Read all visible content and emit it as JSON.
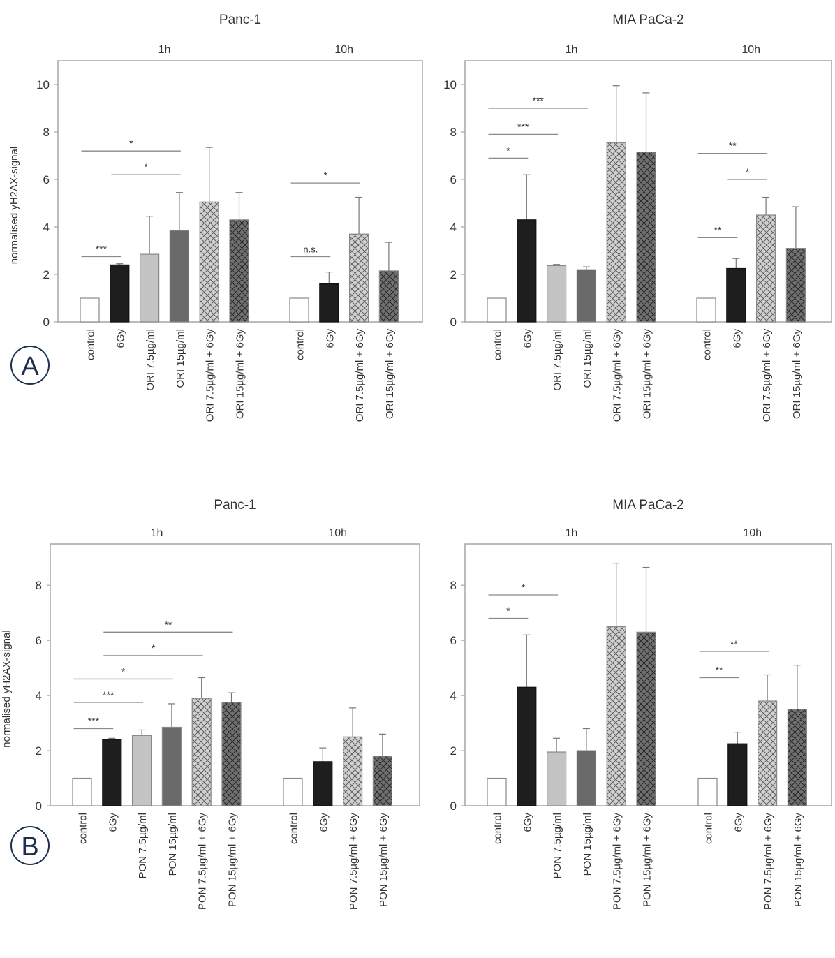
{
  "panel_labels": [
    "A",
    "B"
  ],
  "colors": {
    "control": "#ffffff",
    "irradiated": "#1e1e1e",
    "drug_low": "#c4c4c4",
    "drug_high": "#6a6a6a",
    "combo_low": "#c8c8c8",
    "combo_high": "#6a6a6a",
    "axis": "#a6a6a6",
    "text": "#333333"
  },
  "chart_data": [
    {
      "id": "A-panc1",
      "type": "bar",
      "title": "Panc-1",
      "ylabel": "normalised yH2AX-signal",
      "xlabel": "",
      "ylim": [
        0,
        11
      ],
      "yticks": [
        0,
        2,
        4,
        6,
        8,
        10
      ],
      "groups": [
        {
          "label": "1h",
          "categories": [
            "control",
            "6Gy",
            "ORI 7.5µg/ml",
            "ORI 15µg/ml",
            "ORI 7.5µg/ml + 6Gy",
            "ORI 15µg/ml + 6Gy"
          ],
          "values": [
            1.0,
            2.4,
            2.85,
            3.85,
            5.05,
            4.3
          ],
          "errors": [
            0,
            0.05,
            1.6,
            1.6,
            2.3,
            1.15
          ],
          "styles": [
            "control",
            "irradiated",
            "drug_low",
            "drug_high",
            "combo_low",
            "combo_high"
          ]
        },
        {
          "label": "10h",
          "categories": [
            "control",
            "6Gy",
            "ORI 7.5µg/ml + 6Gy",
            "ORI 15µg/ml + 6Gy"
          ],
          "values": [
            1.0,
            1.6,
            3.7,
            2.15
          ],
          "errors": [
            0,
            0.5,
            1.55,
            1.2
          ],
          "styles": [
            "control",
            "irradiated",
            "combo_low",
            "combo_high"
          ]
        }
      ],
      "significance": [
        {
          "group": 0,
          "from": 0,
          "to": 1,
          "y": 2.75,
          "label": "***"
        },
        {
          "group": 0,
          "from": 0,
          "to": 3,
          "y": 7.2,
          "label": "*"
        },
        {
          "group": 0,
          "from": 1,
          "to": 3,
          "y": 6.2,
          "label": "*"
        },
        {
          "group": 1,
          "from": 0,
          "to": 1,
          "y": 2.75,
          "label": "n.s."
        },
        {
          "group": 1,
          "from": 0,
          "to": 2,
          "y": 5.85,
          "label": "*"
        }
      ]
    },
    {
      "id": "A-miapaca2",
      "type": "bar",
      "title": "MIA PaCa-2",
      "ylabel": "",
      "xlabel": "",
      "ylim": [
        0,
        11
      ],
      "yticks": [
        0,
        2,
        4,
        6,
        8,
        10
      ],
      "groups": [
        {
          "label": "1h",
          "categories": [
            "control",
            "6Gy",
            "ORI 7.5µg/ml",
            "ORI 15µg/ml",
            "ORI 7.5µg/ml + 6Gy",
            "ORI 15µg/ml + 6Gy"
          ],
          "values": [
            1.0,
            4.3,
            2.37,
            2.2,
            7.55,
            7.15
          ],
          "errors": [
            0,
            1.9,
            0.05,
            0.12,
            2.4,
            2.5
          ],
          "styles": [
            "control",
            "irradiated",
            "drug_low",
            "drug_high",
            "combo_low",
            "combo_high"
          ]
        },
        {
          "label": "10h",
          "categories": [
            "control",
            "6Gy",
            "ORI 7.5µg/ml + 6Gy",
            "ORI 15µg/ml + 6Gy"
          ],
          "values": [
            1.0,
            2.25,
            4.5,
            3.1
          ],
          "errors": [
            0,
            0.42,
            0.75,
            1.75
          ],
          "styles": [
            "control",
            "irradiated",
            "combo_low",
            "combo_high"
          ]
        }
      ],
      "significance": [
        {
          "group": 0,
          "from": 0,
          "to": 1,
          "y": 6.9,
          "label": "*"
        },
        {
          "group": 0,
          "from": 0,
          "to": 2,
          "y": 7.9,
          "label": "***"
        },
        {
          "group": 0,
          "from": 0,
          "to": 3,
          "y": 9.0,
          "label": "***"
        },
        {
          "group": 1,
          "from": 0,
          "to": 1,
          "y": 3.55,
          "label": "**"
        },
        {
          "group": 1,
          "from": 1,
          "to": 2,
          "y": 6.0,
          "label": "*"
        },
        {
          "group": 1,
          "from": 0,
          "to": 2,
          "y": 7.1,
          "label": "**"
        }
      ]
    },
    {
      "id": "B-panc1",
      "type": "bar",
      "title": "Panc-1",
      "ylabel": "normalised yH2AX-signal",
      "xlabel": "",
      "ylim": [
        0,
        9.5
      ],
      "yticks": [
        0,
        2,
        4,
        6,
        8
      ],
      "groups": [
        {
          "label": "1h",
          "categories": [
            "control",
            "6Gy",
            "PON 7.5µg/ml",
            "PON 15µg/ml",
            "PON 7.5µg/ml + 6Gy",
            "PON 15µg/ml + 6Gy"
          ],
          "values": [
            1.0,
            2.4,
            2.55,
            2.85,
            3.9,
            3.75
          ],
          "errors": [
            0,
            0.05,
            0.2,
            0.85,
            0.75,
            0.35
          ],
          "styles": [
            "control",
            "irradiated",
            "drug_low",
            "drug_high",
            "combo_low",
            "combo_high"
          ]
        },
        {
          "label": "10h",
          "categories": [
            "control",
            "6Gy",
            "PON 7.5µg/ml + 6Gy",
            "PON 15µg/ml + 6Gy"
          ],
          "values": [
            1.0,
            1.6,
            2.5,
            1.8
          ],
          "errors": [
            0,
            0.5,
            1.05,
            0.8
          ],
          "styles": [
            "control",
            "irradiated",
            "combo_low",
            "combo_high"
          ]
        }
      ],
      "significance": [
        {
          "group": 0,
          "from": 0,
          "to": 1,
          "y": 2.8,
          "label": "***"
        },
        {
          "group": 0,
          "from": 0,
          "to": 2,
          "y": 3.75,
          "label": "***"
        },
        {
          "group": 0,
          "from": 0,
          "to": 3,
          "y": 4.6,
          "label": "*"
        },
        {
          "group": 0,
          "from": 1,
          "to": 4,
          "y": 5.45,
          "label": "*"
        },
        {
          "group": 0,
          "from": 1,
          "to": 5,
          "y": 6.3,
          "label": "**"
        }
      ]
    },
    {
      "id": "B-miapaca2",
      "type": "bar",
      "title": "MIA PaCa-2",
      "ylabel": "",
      "xlabel": "",
      "ylim": [
        0,
        9.5
      ],
      "yticks": [
        0,
        2,
        4,
        6,
        8
      ],
      "groups": [
        {
          "label": "1h",
          "categories": [
            "control",
            "6Gy",
            "PON 7.5µg/ml",
            "PON 15µg/ml",
            "PON 7.5µg/ml + 6Gy",
            "PON 15µg/ml + 6Gy"
          ],
          "values": [
            1.0,
            4.3,
            1.95,
            2.0,
            6.5,
            6.3
          ],
          "errors": [
            0,
            1.9,
            0.5,
            0.8,
            2.3,
            2.35
          ],
          "styles": [
            "control",
            "irradiated",
            "drug_low",
            "drug_high",
            "combo_low",
            "combo_high"
          ]
        },
        {
          "label": "10h",
          "categories": [
            "control",
            "6Gy",
            "PON 7.5µg/ml + 6Gy",
            "PON 15µg/ml + 6Gy"
          ],
          "values": [
            1.0,
            2.25,
            3.8,
            3.5
          ],
          "errors": [
            0,
            0.42,
            0.95,
            1.6
          ],
          "styles": [
            "control",
            "irradiated",
            "combo_low",
            "combo_high"
          ]
        }
      ],
      "significance": [
        {
          "group": 0,
          "from": 0,
          "to": 1,
          "y": 6.8,
          "label": "*"
        },
        {
          "group": 0,
          "from": 0,
          "to": 2,
          "y": 7.65,
          "label": "*"
        },
        {
          "group": 1,
          "from": 0,
          "to": 1,
          "y": 4.65,
          "label": "**"
        },
        {
          "group": 1,
          "from": 0,
          "to": 2,
          "y": 5.6,
          "label": "**"
        }
      ]
    }
  ]
}
